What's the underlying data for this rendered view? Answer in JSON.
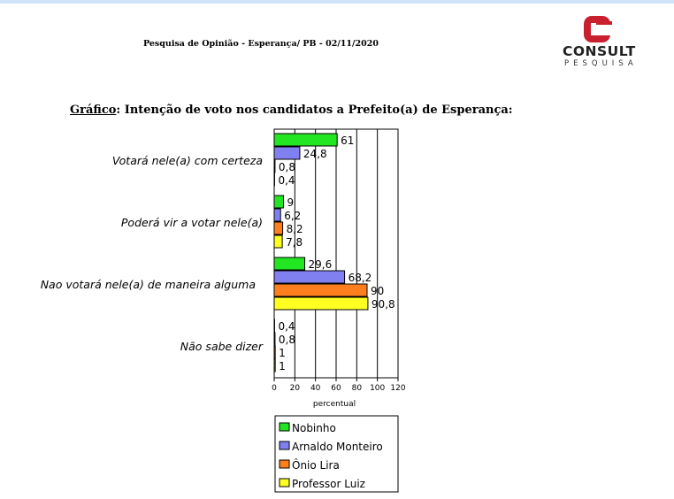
{
  "header": {
    "survey_line": "Pesquisa de Opinião  - Esperança/ PB  - 02/11/2020",
    "logo_word": "CONSULT",
    "logo_sub": "PESQUISA",
    "logo_icon": "consult-c-logo",
    "logo_color": "#c8202f"
  },
  "title": {
    "prefix": "Gráfico",
    "text": ":  Intenção de voto nos candidatos a Prefeito(a) de Esperança:"
  },
  "chart_data": {
    "type": "bar",
    "orientation": "horizontal",
    "categories": [
      "Votará nele(a) com certeza",
      "Poderá vir a votar nele(a)",
      "Nao votará nele(a) de maneira alguma",
      "Não sabe dizer"
    ],
    "series": [
      {
        "name": "Nobinho",
        "color": "#22e622",
        "values": [
          61,
          9,
          29.6,
          0.4
        ],
        "labels": [
          "61",
          "9",
          "29,6",
          "0,4"
        ]
      },
      {
        "name": "Arnaldo Monteiro",
        "color": "#8080f0",
        "values": [
          24.8,
          6.2,
          68.2,
          0.8
        ],
        "labels": [
          "24,8",
          "6,2",
          "68,2",
          "0,8"
        ]
      },
      {
        "name": "Ônio Lira",
        "color": "#ff7f1e",
        "values": [
          0.8,
          8.2,
          90,
          1
        ],
        "labels": [
          "0,8",
          "8,2",
          "90",
          "1"
        ]
      },
      {
        "name": "Professor Luiz",
        "color": "#ffff22",
        "values": [
          0.4,
          7.8,
          90.8,
          1
        ],
        "labels": [
          "0,4",
          "7,8",
          "90,8",
          "1"
        ]
      }
    ],
    "xlim": [
      0,
      120
    ],
    "xticks": [
      "0",
      "20",
      "40",
      "60",
      "80",
      "100",
      "120"
    ],
    "xlabel": "percentual",
    "ylabel": "",
    "grid": "vertical",
    "legend": "bottom"
  }
}
